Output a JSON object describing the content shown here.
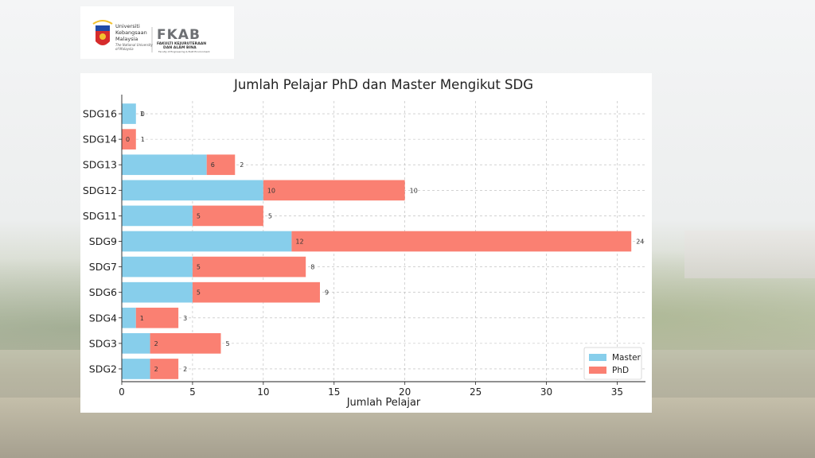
{
  "logos": {
    "um_line1": "Universiti",
    "um_line2": "Kebangsaan",
    "um_line3": "Malaysia",
    "um_line4": "The National University",
    "um_line5": "of Malaysia",
    "fkab_abbr": "FKAB",
    "fkab_line1": "FAKULTI KEJURUTERAAN",
    "fkab_line2": "DAN ALAM BINA",
    "fkab_line3": "Faculty of Engineering & Built Environment"
  },
  "chart_data": {
    "type": "bar",
    "orientation": "horizontal",
    "stacked": true,
    "title": "Jumlah Pelajar PhD dan Master Mengikut SDG",
    "xlabel": "Jumlah Pelajar",
    "ylabel": "",
    "xlim": [
      0,
      37
    ],
    "xticks": [
      0,
      5,
      10,
      15,
      20,
      25,
      30,
      35
    ],
    "grid": true,
    "legend_position": "bottom-right",
    "categories": [
      "SDG2",
      "SDG3",
      "SDG4",
      "SDG6",
      "SDG7",
      "SDG9",
      "SDG11",
      "SDG12",
      "SDG13",
      "SDG14",
      "SDG16"
    ],
    "series": [
      {
        "name": "Master",
        "color": "#87ceeb",
        "values": [
          2,
          2,
          1,
          5,
          5,
          12,
          5,
          10,
          6,
          0,
          1
        ]
      },
      {
        "name": "PhD",
        "color": "#fa8072",
        "values": [
          2,
          5,
          3,
          9,
          8,
          24,
          5,
          10,
          2,
          1,
          0
        ]
      }
    ]
  }
}
